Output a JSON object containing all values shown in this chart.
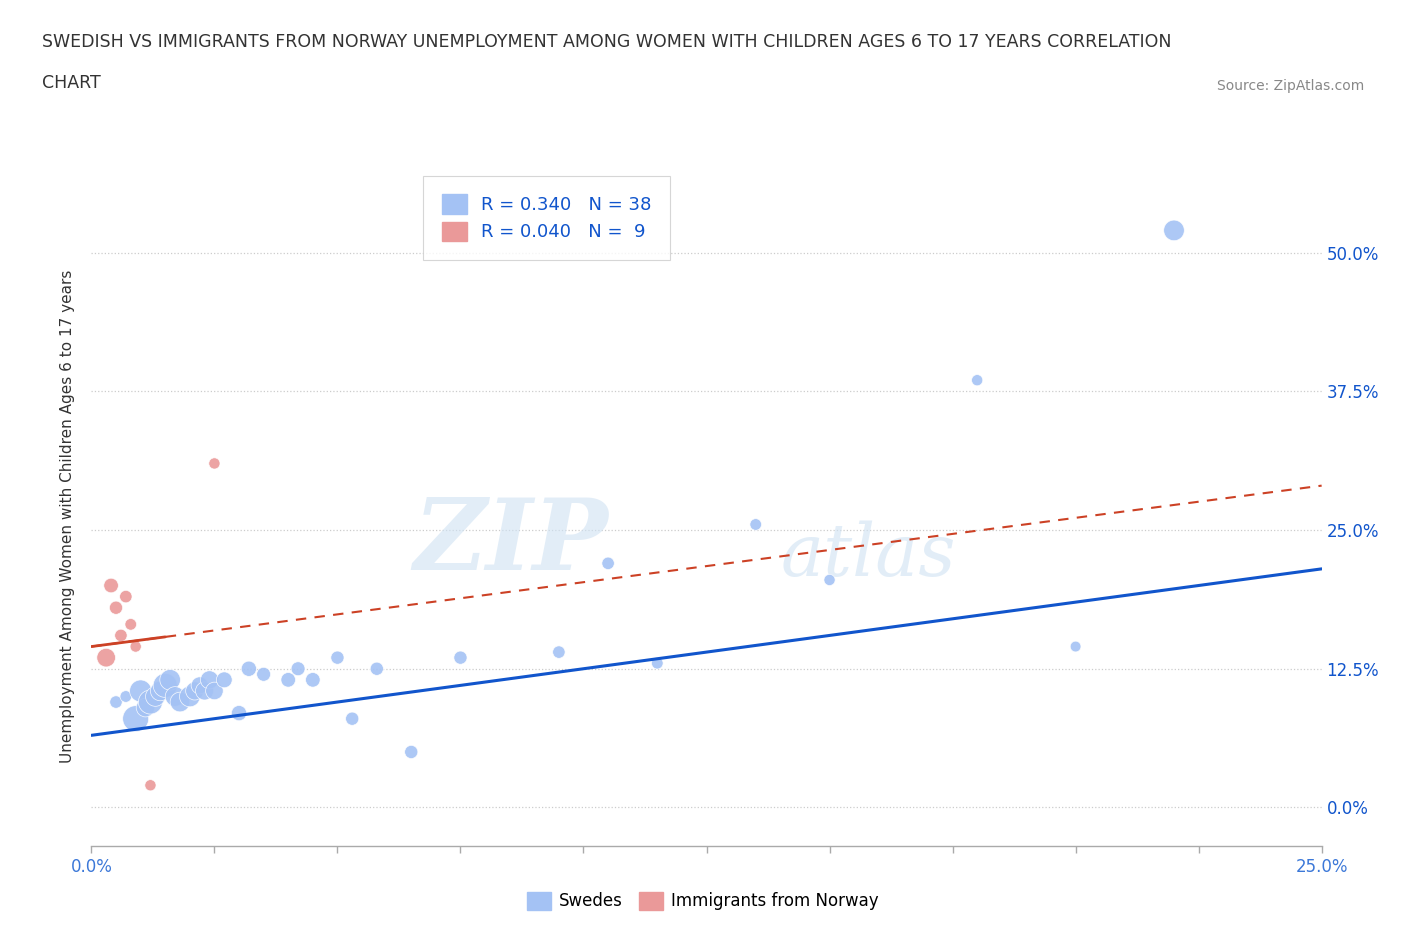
{
  "title_line1": "SWEDISH VS IMMIGRANTS FROM NORWAY UNEMPLOYMENT AMONG WOMEN WITH CHILDREN AGES 6 TO 17 YEARS CORRELATION",
  "title_line2": "CHART",
  "source": "Source: ZipAtlas.com",
  "ylabel": "Unemployment Among Women with Children Ages 6 to 17 years",
  "ytick_vals": [
    0.0,
    12.5,
    25.0,
    37.5,
    50.0
  ],
  "xtick_vals": [
    0.0,
    2.5,
    5.0,
    7.5,
    10.0,
    12.5,
    15.0,
    17.5,
    20.0,
    22.5,
    25.0
  ],
  "xlim": [
    0.0,
    25.0
  ],
  "ylim": [
    -3.5,
    56.0
  ],
  "swedes_R": 0.34,
  "swedes_N": 38,
  "norway_R": 0.04,
  "norway_N": 9,
  "blue_color": "#a4c2f4",
  "pink_color": "#ea9999",
  "blue_line_color": "#1155cc",
  "pink_line_color": "#cc4125",
  "text_blue": "#1155cc",
  "background": "#ffffff",
  "grid_color": "#cccccc",
  "watermark_zip": "ZIP",
  "watermark_atlas": "atlas",
  "swedes_x": [
    0.5,
    0.7,
    0.9,
    1.0,
    1.1,
    1.2,
    1.3,
    1.4,
    1.5,
    1.6,
    1.7,
    1.8,
    2.0,
    2.1,
    2.2,
    2.3,
    2.4,
    2.5,
    2.7,
    3.0,
    3.2,
    3.5,
    4.0,
    4.2,
    4.5,
    5.0,
    5.3,
    5.8,
    6.5,
    7.5,
    9.5,
    10.5,
    11.5,
    13.5,
    15.0,
    18.0,
    20.0,
    22.0
  ],
  "swedes_y": [
    9.5,
    10.0,
    8.0,
    10.5,
    9.0,
    9.5,
    10.0,
    10.5,
    11.0,
    11.5,
    10.0,
    9.5,
    10.0,
    10.5,
    11.0,
    10.5,
    11.5,
    10.5,
    11.5,
    8.5,
    12.5,
    12.0,
    11.5,
    12.5,
    11.5,
    13.5,
    8.0,
    12.5,
    5.0,
    13.5,
    14.0,
    22.0,
    13.0,
    25.5,
    20.5,
    38.5,
    14.5,
    52.0
  ],
  "swedes_size": [
    80,
    70,
    350,
    250,
    180,
    300,
    200,
    200,
    300,
    220,
    200,
    200,
    220,
    170,
    150,
    170,
    170,
    160,
    130,
    120,
    120,
    100,
    110,
    100,
    110,
    90,
    90,
    90,
    90,
    90,
    80,
    80,
    70,
    70,
    65,
    65,
    60,
    220
  ],
  "norway_x": [
    0.3,
    0.4,
    0.5,
    0.6,
    0.7,
    0.8,
    0.9,
    1.2,
    2.5
  ],
  "norway_y": [
    13.5,
    20.0,
    18.0,
    15.5,
    19.0,
    16.5,
    14.5,
    2.0,
    31.0
  ],
  "norway_size": [
    180,
    110,
    90,
    80,
    80,
    70,
    65,
    65,
    65
  ],
  "blue_line_x0": 0.0,
  "blue_line_y0": 6.5,
  "blue_line_x1": 25.0,
  "blue_line_y1": 21.5,
  "pink_line_x0": 0.0,
  "pink_line_y0": 14.5,
  "pink_line_x1": 25.0,
  "pink_line_y1": 29.0
}
